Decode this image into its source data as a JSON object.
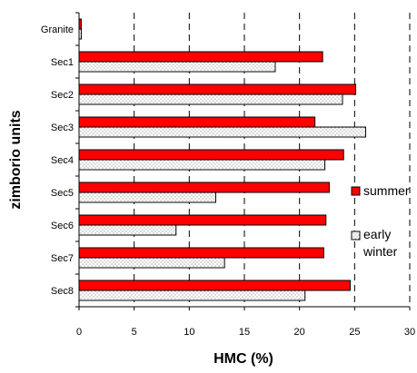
{
  "chart_data": {
    "type": "bar",
    "orientation": "horizontal",
    "categories": [
      "Granite",
      "Sec1",
      "Sec2",
      "Sec3",
      "Sec4",
      "Sec5",
      "Sec6",
      "Sec7",
      "Sec8"
    ],
    "series": [
      {
        "name": "summer",
        "values": [
          0.2,
          22.1,
          25.1,
          21.4,
          24.0,
          22.7,
          22.4,
          22.2,
          24.6
        ],
        "color": "#ff0000",
        "pattern": "solid"
      },
      {
        "name_lines": [
          "early",
          "winter"
        ],
        "values": [
          0.2,
          17.8,
          23.9,
          26.0,
          22.3,
          12.4,
          8.8,
          13.2,
          20.5
        ],
        "color": "#ffffff",
        "pattern": "dotted"
      }
    ],
    "xlabel": "HMC (%)",
    "ylabel": "zimborio units",
    "xlim": [
      0,
      30
    ],
    "xticks": [
      0,
      5,
      10,
      15,
      20,
      25,
      30
    ],
    "grid": "vertical dashed",
    "legend_position": "right"
  }
}
